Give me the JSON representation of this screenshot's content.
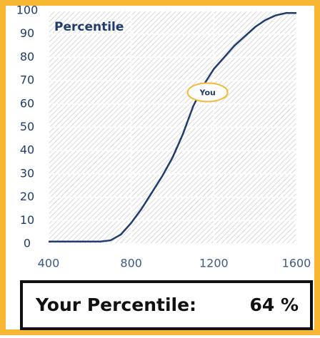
{
  "chart_data": {
    "type": "line",
    "title": "Percentile",
    "x": [
      400,
      450,
      500,
      550,
      600,
      650,
      700,
      750,
      800,
      850,
      900,
      950,
      1000,
      1050,
      1100,
      1150,
      1200,
      1250,
      1300,
      1350,
      1400,
      1450,
      1500,
      1550,
      1600
    ],
    "series": [
      {
        "color": "#1f3c6e",
        "values": [
          1,
          1,
          1,
          1,
          1,
          1,
          1.5,
          4,
          9,
          15,
          22,
          29,
          37,
          47,
          59,
          68,
          75,
          80,
          85,
          89,
          93,
          96,
          98,
          99,
          99
        ]
      }
    ],
    "xlim": [
      400,
      1600
    ],
    "xticks": [
      400,
      800,
      1200,
      1600
    ],
    "ylim": [
      0,
      100
    ],
    "yticks": [
      0,
      10,
      20,
      30,
      40,
      50,
      60,
      70,
      80,
      90,
      100
    ],
    "grid": true,
    "annotation": {
      "text": "You",
      "x": 1170,
      "y": 65
    }
  },
  "result_box": {
    "label": "Your Percentile:",
    "value": "64 %"
  }
}
